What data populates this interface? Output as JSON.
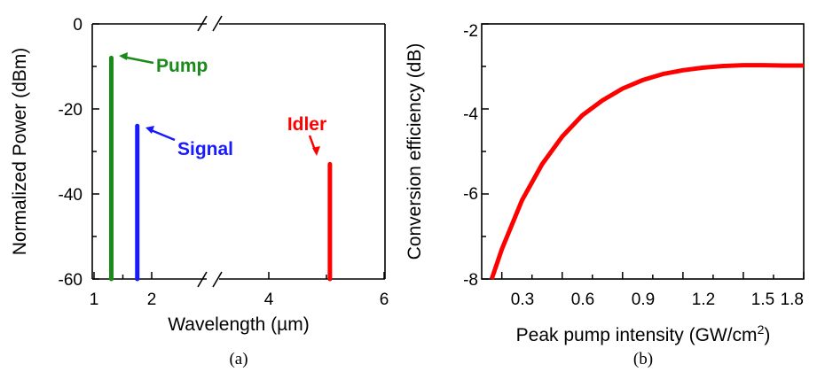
{
  "chart_data": [
    {
      "type": "line",
      "panel_label": "(a)",
      "xlabel": "Wavelength (µm)",
      "ylabel": "Normalized Power (dBm)",
      "xlim": [
        1,
        6
      ],
      "ylim": [
        -60,
        0
      ],
      "x_ticks": [
        "1",
        "2",
        "4",
        "6"
      ],
      "y_ticks": [
        "0",
        "-20",
        "-40",
        "-60"
      ],
      "axis_break": "between 2 and 4 µm",
      "grid": false,
      "series": [
        {
          "name": "Pump",
          "color": "#1a8a1a",
          "x": [
            1.3,
            1.3
          ],
          "y": [
            -60,
            -8
          ]
        },
        {
          "name": "Signal",
          "color": "#1a1aff",
          "x": [
            1.75,
            1.75
          ],
          "y": [
            -60,
            -24
          ]
        },
        {
          "name": "Idler",
          "color": "#ff0000",
          "x": [
            5.06,
            5.06
          ],
          "y": [
            -60,
            -33
          ]
        }
      ]
    },
    {
      "type": "line",
      "panel_label": "(b)",
      "xlabel": "Peak pump intensity (GW/cm",
      "xlabel_sup": "2",
      "xlabel_close": ")",
      "ylabel": "Conversion efficiency (dB)",
      "xlim": [
        0.2,
        1.8
      ],
      "ylim": [
        -8,
        -2
      ],
      "x_ticks": [
        "0.3",
        "0.6",
        "0.9",
        "1.2",
        "1.5",
        "1.8"
      ],
      "y_ticks": [
        "-2",
        "-4",
        "-6",
        "-8"
      ],
      "grid": false,
      "series": [
        {
          "color": "#ff0000",
          "x": [
            0.25,
            0.3,
            0.4,
            0.5,
            0.6,
            0.7,
            0.8,
            0.9,
            1.0,
            1.1,
            1.2,
            1.3,
            1.4,
            1.5,
            1.6,
            1.7,
            1.8
          ],
          "y": [
            -8.0,
            -7.3,
            -6.15,
            -5.3,
            -4.65,
            -4.15,
            -3.8,
            -3.52,
            -3.32,
            -3.18,
            -3.09,
            -3.03,
            -2.99,
            -2.97,
            -2.97,
            -2.98,
            -2.98
          ]
        }
      ]
    }
  ]
}
